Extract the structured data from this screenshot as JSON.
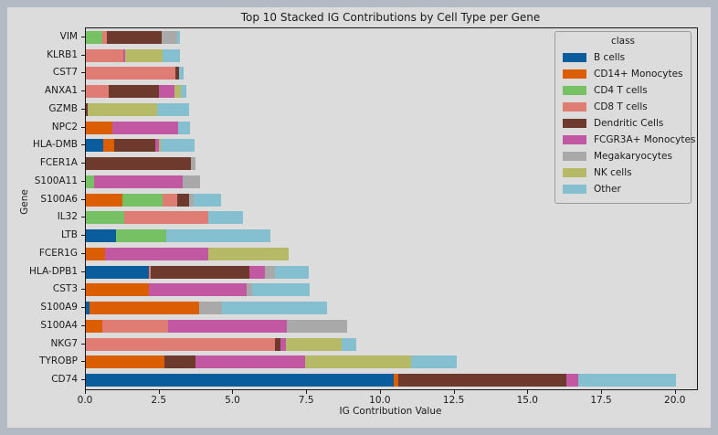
{
  "figure": {
    "frame_color": "#b3bac3",
    "background_color": "#dcdcdc"
  },
  "chart_data": {
    "type": "bar",
    "orientation": "horizontal",
    "stacked": true,
    "title": "Top 10 Stacked IG Contributions by Cell Type per Gene",
    "xlabel": "IG Contribution Value",
    "ylabel": "Gene",
    "xlim": [
      0,
      20.72
    ],
    "grid": false,
    "legend_position": "upper right inside",
    "legend_title": "class",
    "xtick_labels": [
      "0.0",
      "2.5",
      "5.0",
      "7.5",
      "10.0",
      "12.5",
      "15.0",
      "17.5",
      "20.0"
    ],
    "xtick_values": [
      0,
      2.5,
      5,
      7.5,
      10,
      12.5,
      15,
      17.5,
      20
    ],
    "classes": [
      {
        "name": "B cells",
        "color": "#0a5d9c"
      },
      {
        "name": "CD14+ Monocytes",
        "color": "#dc5e03"
      },
      {
        "name": "CD4 T cells",
        "color": "#76c163"
      },
      {
        "name": "CD8 T cells",
        "color": "#df7d75"
      },
      {
        "name": "Dendritic Cells",
        "color": "#6f3a2e"
      },
      {
        "name": "FCGR3A+ Monocytes",
        "color": "#c358a2"
      },
      {
        "name": "Megakaryocytes",
        "color": "#a9a9a9"
      },
      {
        "name": "NK cells",
        "color": "#b6ba67"
      },
      {
        "name": "Other",
        "color": "#85c0d1"
      }
    ],
    "bars": [
      {
        "gene": "VIM",
        "values": [
          0,
          0,
          0.55,
          0.16,
          1.86,
          0,
          0.52,
          0,
          0.1
        ]
      },
      {
        "gene": "KLRB1",
        "values": [
          0,
          0,
          0,
          1.26,
          0,
          0.08,
          0,
          1.27,
          0.58
        ]
      },
      {
        "gene": "CST7",
        "values": [
          0,
          0,
          0,
          3.05,
          0.11,
          0,
          0,
          0,
          0.15
        ]
      },
      {
        "gene": "ANXA1",
        "values": [
          0,
          0,
          0,
          0.77,
          1.7,
          0.53,
          0,
          0.23,
          0.17
        ]
      },
      {
        "gene": "GZMB",
        "values": [
          0,
          0,
          0,
          0,
          0.06,
          0,
          0,
          2.35,
          1.08
        ]
      },
      {
        "gene": "NPC2",
        "values": [
          0,
          0.91,
          0,
          0,
          0,
          2.22,
          0,
          0,
          0.41
        ]
      },
      {
        "gene": "HLA-DMB",
        "values": [
          0.59,
          0.38,
          0,
          0,
          1.38,
          0.13,
          0,
          0.06,
          1.15
        ]
      },
      {
        "gene": "FCER1A",
        "values": [
          0,
          0,
          0,
          0,
          3.57,
          0,
          0.15,
          0,
          0
        ]
      },
      {
        "gene": "S100A11",
        "values": [
          0,
          0,
          0.29,
          0,
          0,
          2.99,
          0.6,
          0,
          0
        ]
      },
      {
        "gene": "S100A6",
        "values": [
          0,
          1.24,
          1.36,
          0.51,
          0.39,
          0,
          0.15,
          0,
          0.93
        ]
      },
      {
        "gene": "IL32",
        "values": [
          0,
          0,
          1.3,
          2.85,
          0,
          0,
          0,
          0,
          1.18
        ]
      },
      {
        "gene": "LTB",
        "values": [
          1.02,
          0,
          1.7,
          0,
          0,
          0,
          0,
          0,
          3.53
        ]
      },
      {
        "gene": "FCER1G",
        "values": [
          0,
          0.65,
          0,
          0,
          0,
          3.49,
          0,
          2.74,
          0
        ]
      },
      {
        "gene": "HLA-DPB1",
        "values": [
          2.14,
          0,
          0,
          0.05,
          3.36,
          0.52,
          0.35,
          0,
          1.13
        ]
      },
      {
        "gene": "CST3",
        "values": [
          0,
          2.13,
          0,
          0,
          0,
          3.32,
          0.19,
          0,
          1.96
        ]
      },
      {
        "gene": "S100A9",
        "values": [
          0.13,
          3.72,
          0,
          0,
          0,
          0,
          0.76,
          0,
          3.57
        ]
      },
      {
        "gene": "S100A4",
        "values": [
          0,
          0.55,
          0,
          2.25,
          0,
          4.0,
          2.05,
          0,
          0
        ]
      },
      {
        "gene": "NKG7",
        "values": [
          0,
          0,
          0,
          6.41,
          0.18,
          0.19,
          0,
          1.89,
          0.49
        ]
      },
      {
        "gene": "TYROBP",
        "values": [
          0,
          2.67,
          0,
          0,
          1.04,
          3.71,
          0,
          3.61,
          1.55
        ]
      },
      {
        "gene": "CD74",
        "values": [
          10.45,
          0.15,
          0,
          0,
          5.7,
          0.38,
          0,
          0,
          3.32
        ]
      }
    ]
  }
}
